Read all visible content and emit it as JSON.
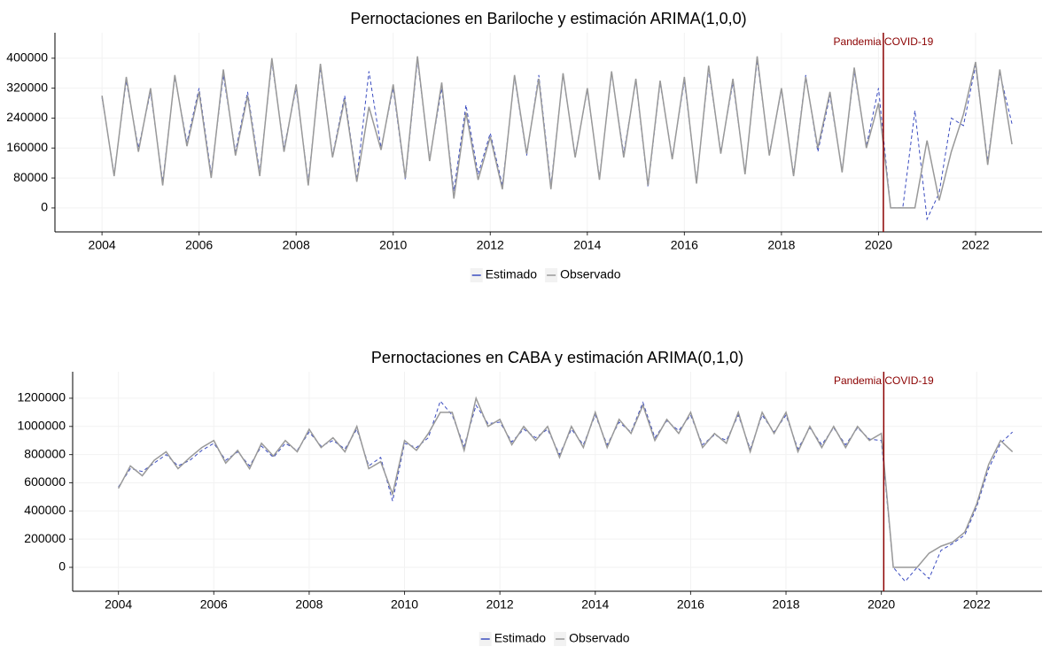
{
  "chart_data": [
    {
      "type": "line",
      "title": "Pernoctaciones en Bariloche y estimación ARIMA(1,0,0)",
      "xlim": [
        2003.03,
        2023.37
      ],
      "ylim": [
        -64000,
        468000
      ],
      "xticks": [
        2004,
        2006,
        2008,
        2010,
        2012,
        2014,
        2016,
        2018,
        2020,
        2022
      ],
      "yticks": [
        0,
        80000,
        160000,
        240000,
        320000,
        400000
      ],
      "grid": true,
      "legend": "bottom",
      "annotations": [
        {
          "text": "Pandemia COVID-19",
          "x": 2020.1,
          "color": "#8b0000"
        }
      ],
      "x": [
        2004,
        2004.25,
        2004.5,
        2004.75,
        2005,
        2005.25,
        2005.5,
        2005.75,
        2006,
        2006.25,
        2006.5,
        2006.75,
        2007,
        2007.25,
        2007.5,
        2007.75,
        2008,
        2008.25,
        2008.5,
        2008.75,
        2009,
        2009.25,
        2009.5,
        2009.75,
        2010,
        2010.25,
        2010.5,
        2010.75,
        2011,
        2011.25,
        2011.5,
        2011.75,
        2012,
        2012.25,
        2012.5,
        2012.75,
        2013,
        2013.25,
        2013.5,
        2013.75,
        2014,
        2014.25,
        2014.5,
        2014.75,
        2015,
        2015.25,
        2015.5,
        2015.75,
        2016,
        2016.25,
        2016.5,
        2016.75,
        2017,
        2017.25,
        2017.5,
        2017.75,
        2018,
        2018.25,
        2018.5,
        2018.75,
        2019,
        2019.25,
        2019.5,
        2019.75,
        2020,
        2020.25,
        2020.5,
        2020.75,
        2021,
        2021.25,
        2021.5,
        2021.75,
        2022,
        2022.25,
        2022.5,
        2022.75
      ],
      "series": [
        {
          "name": "Estimado",
          "color": "#3b4cc0",
          "dash": true,
          "values": [
            295000,
            90000,
            340000,
            160000,
            310000,
            70000,
            350000,
            175000,
            320000,
            90000,
            355000,
            150000,
            310000,
            95000,
            390000,
            160000,
            320000,
            70000,
            375000,
            140000,
            300000,
            75000,
            365000,
            160000,
            320000,
            75000,
            395000,
            130000,
            320000,
            45000,
            275000,
            90000,
            200000,
            60000,
            350000,
            140000,
            355000,
            60000,
            355000,
            140000,
            315000,
            80000,
            360000,
            145000,
            340000,
            55000,
            335000,
            135000,
            340000,
            70000,
            370000,
            150000,
            335000,
            95000,
            395000,
            145000,
            315000,
            90000,
            355000,
            150000,
            300000,
            100000,
            365000,
            165000,
            320000,
            0,
            0,
            260000,
            -30000,
            40000,
            240000,
            220000,
            380000,
            125000,
            360000,
            225000
          ]
        },
        {
          "name": "Observado",
          "color": "#999999",
          "dash": false,
          "values": [
            300000,
            85000,
            350000,
            150000,
            320000,
            60000,
            355000,
            165000,
            310000,
            80000,
            370000,
            140000,
            300000,
            85000,
            400000,
            150000,
            330000,
            60000,
            385000,
            135000,
            290000,
            70000,
            270000,
            155000,
            330000,
            80000,
            405000,
            125000,
            335000,
            25000,
            255000,
            75000,
            190000,
            50000,
            355000,
            145000,
            345000,
            50000,
            360000,
            135000,
            320000,
            75000,
            365000,
            135000,
            345000,
            60000,
            340000,
            130000,
            350000,
            65000,
            380000,
            145000,
            345000,
            90000,
            405000,
            140000,
            320000,
            85000,
            350000,
            160000,
            310000,
            95000,
            375000,
            160000,
            280000,
            0,
            0,
            0,
            180000,
            20000,
            150000,
            250000,
            390000,
            115000,
            370000,
            170000
          ]
        }
      ]
    },
    {
      "type": "line",
      "title": "Pernoctaciones en CABA y estimación ARIMA(0,1,0)",
      "xlim": [
        2003.04,
        2023.37
      ],
      "ylim": [
        -169600,
        1388000
      ],
      "xticks": [
        2004,
        2006,
        2008,
        2010,
        2012,
        2014,
        2016,
        2018,
        2020,
        2022
      ],
      "yticks": [
        0,
        200000,
        400000,
        600000,
        800000,
        1000000,
        1200000
      ],
      "grid": true,
      "legend": "bottom",
      "annotations": [
        {
          "text": "Pandemia COVID-19",
          "x": 2020.05,
          "color": "#8b0000"
        }
      ],
      "x": [
        2004,
        2004.25,
        2004.5,
        2004.75,
        2005,
        2005.25,
        2005.5,
        2005.75,
        2006,
        2006.25,
        2006.5,
        2006.75,
        2007,
        2007.25,
        2007.5,
        2007.75,
        2008,
        2008.25,
        2008.5,
        2008.75,
        2009,
        2009.25,
        2009.5,
        2009.75,
        2010,
        2010.25,
        2010.5,
        2010.75,
        2011,
        2011.25,
        2011.5,
        2011.75,
        2012,
        2012.25,
        2012.5,
        2012.75,
        2013,
        2013.25,
        2013.5,
        2013.75,
        2014,
        2014.25,
        2014.5,
        2014.75,
        2015,
        2015.25,
        2015.5,
        2015.75,
        2016,
        2016.25,
        2016.5,
        2016.75,
        2017,
        2017.25,
        2017.5,
        2017.75,
        2018,
        2018.25,
        2018.5,
        2018.75,
        2019,
        2019.25,
        2019.5,
        2019.75,
        2020,
        2020.25,
        2020.5,
        2020.75,
        2021,
        2021.25,
        2021.5,
        2021.75,
        2022,
        2022.25,
        2022.5,
        2022.75
      ],
      "series": [
        {
          "name": "Estimado",
          "color": "#3b4cc0",
          "dash": true,
          "values": [
            570000,
            700000,
            680000,
            740000,
            800000,
            720000,
            760000,
            830000,
            880000,
            760000,
            820000,
            720000,
            860000,
            780000,
            880000,
            830000,
            960000,
            860000,
            900000,
            840000,
            980000,
            720000,
            780000,
            470000,
            880000,
            850000,
            920000,
            1180000,
            1080000,
            860000,
            1150000,
            1020000,
            1030000,
            890000,
            980000,
            920000,
            980000,
            800000,
            980000,
            870000,
            1080000,
            870000,
            1030000,
            960000,
            1170000,
            920000,
            1040000,
            970000,
            1080000,
            870000,
            940000,
            900000,
            1080000,
            840000,
            1080000,
            960000,
            1080000,
            840000,
            990000,
            870000,
            990000,
            870000,
            990000,
            910000,
            900000,
            0,
            -100000,
            0,
            -80000,
            120000,
            170000,
            230000,
            430000,
            700000,
            880000,
            960000
          ]
        },
        {
          "name": "Observado",
          "color": "#999999",
          "dash": false,
          "values": [
            560000,
            720000,
            650000,
            760000,
            820000,
            700000,
            780000,
            850000,
            900000,
            740000,
            830000,
            700000,
            880000,
            790000,
            900000,
            820000,
            980000,
            850000,
            920000,
            820000,
            1000000,
            700000,
            750000,
            520000,
            900000,
            830000,
            950000,
            1100000,
            1100000,
            830000,
            1200000,
            1000000,
            1050000,
            870000,
            1000000,
            900000,
            1000000,
            780000,
            1000000,
            850000,
            1100000,
            850000,
            1050000,
            950000,
            1150000,
            900000,
            1050000,
            950000,
            1100000,
            850000,
            950000,
            880000,
            1100000,
            820000,
            1100000,
            950000,
            1100000,
            820000,
            1000000,
            850000,
            1000000,
            850000,
            1000000,
            900000,
            950000,
            0,
            0,
            0,
            100000,
            150000,
            180000,
            250000,
            450000,
            730000,
            900000,
            820000
          ]
        }
      ]
    }
  ]
}
